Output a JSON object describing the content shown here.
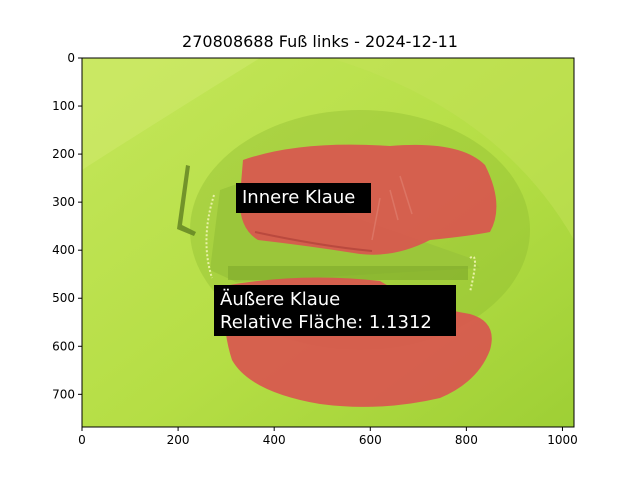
{
  "figure": {
    "title": "270808688 Fuß links - 2024-12-11",
    "xaxis": {
      "range": [
        0,
        1024
      ],
      "ticks": [
        0,
        200,
        400,
        600,
        800,
        1000
      ]
    },
    "yaxis": {
      "range": [
        0,
        768
      ],
      "inverted": true,
      "ticks": [
        0,
        100,
        200,
        300,
        400,
        500,
        600,
        700
      ]
    }
  },
  "annotations": {
    "inner": {
      "label": "Innere Klaue"
    },
    "outer": {
      "label": "Äußere Klaue",
      "area_text": "Relative Fläche: 1.1312"
    }
  },
  "colors": {
    "background_green": "#b9e04a",
    "overlay_red": "#d9564f",
    "label_bg": "#000000",
    "label_text": "#ffffff"
  }
}
